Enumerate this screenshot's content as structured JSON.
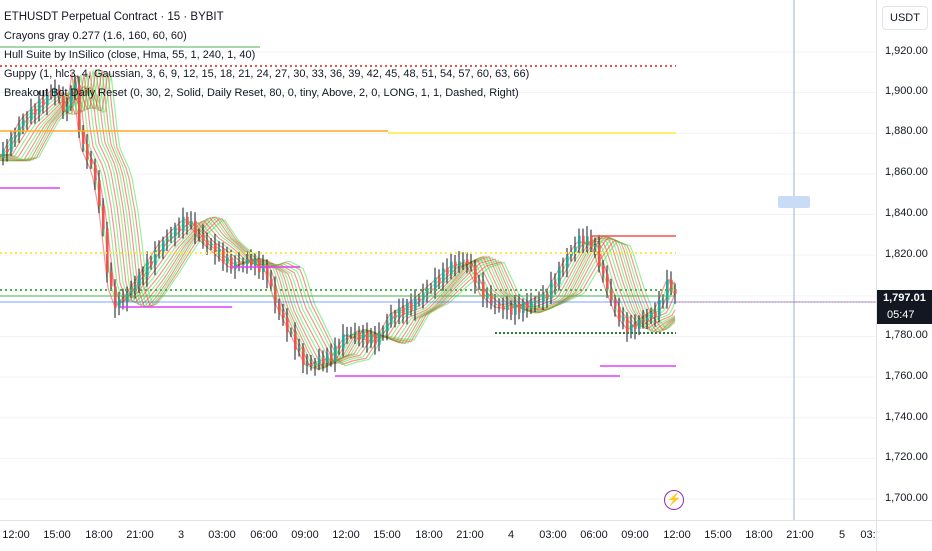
{
  "legend": {
    "title": "ETHUSDT Perpetual Contract · 15 · BYBIT",
    "indicators": [
      "Crayons gray 0.277 (1.6, 160, 60, 60)",
      "Hull Suite by InSilico (close, Hma, 55, 1, 240, 1, 40)",
      "Guppy (1, hlc3, 4, Gaussian, 3, 6, 9, 12, 15, 18, 21, 24, 27, 30, 33, 36, 39, 42, 45, 48, 51, 54, 57, 60, 63, 66)",
      "Breakout Bot Daily Reset (0, 30, 2, Solid, Daily Reset, 80, 0, tiny, Above, 2, 0, LONG, 1, 1, Dashed, Right)"
    ]
  },
  "price_axis": {
    "currency": "USDT",
    "ticks": [
      "1,920.00",
      "1,900.00",
      "1,880.00",
      "1,860.00",
      "1,840.00",
      "1,820.00",
      "1,800.00",
      "1,780.00",
      "1,760.00",
      "1,740.00",
      "1,720.00",
      "1,700.00"
    ],
    "last_price": "1,797.01",
    "countdown": "05:47"
  },
  "time_axis": {
    "ticks": [
      "12:00",
      "15:00",
      "18:00",
      "21:00",
      "3",
      "03:00",
      "06:00",
      "09:00",
      "12:00",
      "15:00",
      "18:00",
      "21:00",
      "4",
      "03:00",
      "06:00",
      "09:00",
      "12:00",
      "15:00",
      "18:00",
      "21:00",
      "5",
      "03:"
    ]
  },
  "colors": {
    "bull": "#26a69a",
    "bear": "#ef5350",
    "guppy_green": "#3ee83e",
    "guppy_red": "#f23a3a",
    "magenta": "#e040fb",
    "yellow": "#ffeb3b",
    "crosshair": "#9db2d9",
    "last_price_line": "#ef5350"
  },
  "icons": {
    "alert": "lightning-icon"
  }
}
